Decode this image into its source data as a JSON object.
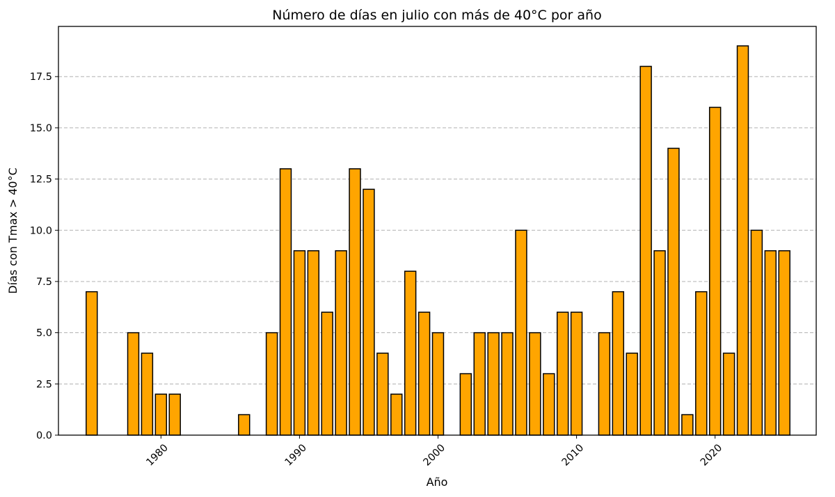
{
  "chart_data": {
    "type": "bar",
    "title": "Número de días en julio con más de 40°C por año",
    "xlabel": "Año",
    "ylabel": "Días con Tmax > 40°C",
    "bar_color": "#FFA500",
    "edge_color": "#000000",
    "grid": "y-dashed",
    "xlim": [
      1972.6,
      2027.3
    ],
    "ylim": [
      0,
      19.95
    ],
    "x_ticks": [
      1980,
      1990,
      2000,
      2010,
      2020
    ],
    "x_tick_labels": [
      "1980",
      "1990",
      "2000",
      "2010",
      "2020"
    ],
    "y_ticks": [
      0,
      2.5,
      5,
      7.5,
      10,
      12.5,
      15,
      17.5
    ],
    "y_tick_labels": [
      "0.0",
      "2.5",
      "5.0",
      "7.5",
      "10.0",
      "12.5",
      "15.0",
      "17.5"
    ],
    "x": [
      1975,
      1978,
      1979,
      1980,
      1981,
      1986,
      1988,
      1989,
      1990,
      1991,
      1992,
      1993,
      1994,
      1995,
      1996,
      1997,
      1998,
      1999,
      2000,
      2002,
      2003,
      2004,
      2005,
      2006,
      2007,
      2008,
      2009,
      2010,
      2012,
      2013,
      2014,
      2015,
      2016,
      2017,
      2018,
      2019,
      2020,
      2021,
      2022,
      2023,
      2024,
      2025
    ],
    "values": [
      7,
      5,
      4,
      2,
      2,
      1,
      5,
      13,
      9,
      9,
      6,
      9,
      13,
      12,
      4,
      2,
      8,
      6,
      5,
      3,
      5,
      5,
      5,
      10,
      5,
      3,
      6,
      6,
      5,
      7,
      4,
      18,
      9,
      14,
      1,
      7,
      16,
      4,
      19,
      10,
      9,
      9
    ]
  }
}
